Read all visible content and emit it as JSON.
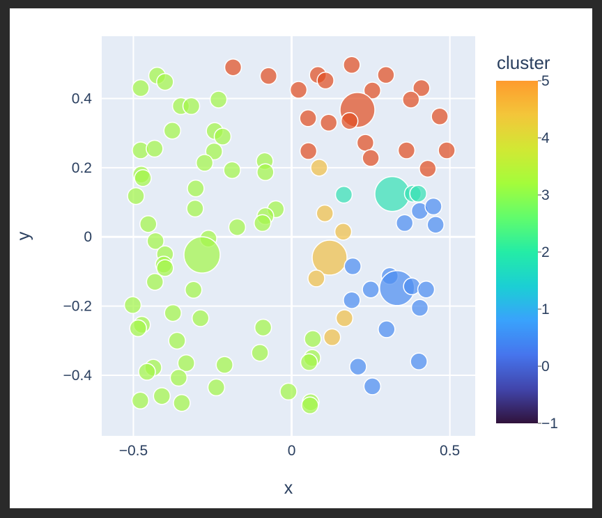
{
  "chart_data": {
    "type": "scatter",
    "title": "",
    "xlabel": "x",
    "ylabel": "y",
    "xlim": [
      -0.6,
      0.58
    ],
    "ylim": [
      -0.575,
      0.58
    ],
    "x_ticks": [
      -0.5,
      0,
      0.5
    ],
    "x_tick_labels": [
      "−0.5",
      "0",
      "0.5"
    ],
    "y_ticks": [
      -0.4,
      -0.2,
      0,
      0.2,
      0.4
    ],
    "y_tick_labels": [
      "−0.4",
      "−0.2",
      "0",
      "0.2",
      "0.4"
    ],
    "grid": true,
    "plot_background": "#e5ecf6",
    "colorbar": {
      "title": "cluster",
      "min": -1,
      "max": 5,
      "ticks": [
        -1,
        0,
        1,
        2,
        3,
        4,
        5
      ],
      "tick_labels": [
        "−1",
        "0",
        "1",
        "2",
        "3",
        "4",
        "5"
      ],
      "colorscale": "turbo"
    },
    "points": [
      {
        "x": -0.477,
        "y": 0.43,
        "cluster": 2,
        "size": 12
      },
      {
        "x": -0.425,
        "y": 0.466,
        "cluster": 2,
        "size": 12
      },
      {
        "x": -0.4,
        "y": 0.448,
        "cluster": 2,
        "size": 12
      },
      {
        "x": -0.35,
        "y": 0.378,
        "cluster": 2,
        "size": 12
      },
      {
        "x": -0.317,
        "y": 0.378,
        "cluster": 2,
        "size": 12
      },
      {
        "x": -0.231,
        "y": 0.397,
        "cluster": 2,
        "size": 12
      },
      {
        "x": -0.377,
        "y": 0.307,
        "cluster": 2,
        "size": 12
      },
      {
        "x": -0.243,
        "y": 0.306,
        "cluster": 2,
        "size": 12
      },
      {
        "x": -0.218,
        "y": 0.29,
        "cluster": 2,
        "size": 12
      },
      {
        "x": -0.477,
        "y": 0.25,
        "cluster": 2,
        "size": 12
      },
      {
        "x": -0.433,
        "y": 0.255,
        "cluster": 2,
        "size": 12
      },
      {
        "x": -0.245,
        "y": 0.247,
        "cluster": 2,
        "size": 12
      },
      {
        "x": -0.275,
        "y": 0.214,
        "cluster": 2,
        "size": 12
      },
      {
        "x": -0.188,
        "y": 0.193,
        "cluster": 2,
        "size": 12
      },
      {
        "x": -0.085,
        "y": 0.219,
        "cluster": 2,
        "size": 12
      },
      {
        "x": -0.083,
        "y": 0.187,
        "cluster": 2,
        "size": 12
      },
      {
        "x": -0.475,
        "y": 0.18,
        "cluster": 2,
        "size": 12
      },
      {
        "x": -0.47,
        "y": 0.17,
        "cluster": 2,
        "size": 12
      },
      {
        "x": -0.492,
        "y": 0.118,
        "cluster": 2,
        "size": 12
      },
      {
        "x": -0.303,
        "y": 0.14,
        "cluster": 2,
        "size": 12
      },
      {
        "x": -0.305,
        "y": 0.082,
        "cluster": 2,
        "size": 12
      },
      {
        "x": -0.05,
        "y": 0.08,
        "cluster": 2,
        "size": 12
      },
      {
        "x": -0.083,
        "y": 0.06,
        "cluster": 2,
        "size": 12
      },
      {
        "x": -0.092,
        "y": 0.04,
        "cluster": 2,
        "size": 12
      },
      {
        "x": -0.172,
        "y": 0.028,
        "cluster": 2,
        "size": 12
      },
      {
        "x": -0.453,
        "y": 0.037,
        "cluster": 2,
        "size": 12
      },
      {
        "x": -0.43,
        "y": -0.012,
        "cluster": 2,
        "size": 12
      },
      {
        "x": -0.263,
        "y": -0.005,
        "cluster": 2,
        "size": 12
      },
      {
        "x": -0.283,
        "y": -0.052,
        "cluster": 2,
        "size": 26
      },
      {
        "x": -0.4,
        "y": -0.05,
        "cluster": 2,
        "size": 12
      },
      {
        "x": -0.404,
        "y": -0.08,
        "cluster": 2,
        "size": 12
      },
      {
        "x": -0.4,
        "y": -0.09,
        "cluster": 2,
        "size": 12
      },
      {
        "x": -0.432,
        "y": -0.13,
        "cluster": 2,
        "size": 12
      },
      {
        "x": -0.31,
        "y": -0.153,
        "cluster": 2,
        "size": 12
      },
      {
        "x": -0.502,
        "y": -0.197,
        "cluster": 2,
        "size": 12
      },
      {
        "x": -0.375,
        "y": -0.22,
        "cluster": 2,
        "size": 12
      },
      {
        "x": -0.288,
        "y": -0.235,
        "cluster": 2,
        "size": 12
      },
      {
        "x": -0.473,
        "y": -0.254,
        "cluster": 2,
        "size": 12
      },
      {
        "x": -0.485,
        "y": -0.264,
        "cluster": 2,
        "size": 12
      },
      {
        "x": -0.09,
        "y": -0.262,
        "cluster": 2,
        "size": 12
      },
      {
        "x": -0.362,
        "y": -0.3,
        "cluster": 2,
        "size": 12
      },
      {
        "x": -0.1,
        "y": -0.335,
        "cluster": 2,
        "size": 12
      },
      {
        "x": -0.333,
        "y": -0.365,
        "cluster": 2,
        "size": 12
      },
      {
        "x": -0.212,
        "y": -0.37,
        "cluster": 2,
        "size": 12
      },
      {
        "x": -0.437,
        "y": -0.378,
        "cluster": 2,
        "size": 12
      },
      {
        "x": -0.457,
        "y": -0.39,
        "cluster": 2,
        "size": 12
      },
      {
        "x": -0.357,
        "y": -0.407,
        "cluster": 2,
        "size": 12
      },
      {
        "x": -0.238,
        "y": -0.435,
        "cluster": 2,
        "size": 12
      },
      {
        "x": -0.41,
        "y": -0.46,
        "cluster": 2,
        "size": 12
      },
      {
        "x": -0.478,
        "y": -0.473,
        "cluster": 2,
        "size": 12
      },
      {
        "x": -0.347,
        "y": -0.48,
        "cluster": 2,
        "size": 12
      },
      {
        "x": -0.01,
        "y": -0.447,
        "cluster": 2,
        "size": 12
      },
      {
        "x": 0.067,
        "y": -0.295,
        "cluster": 2,
        "size": 12
      },
      {
        "x": 0.065,
        "y": -0.35,
        "cluster": 2,
        "size": 12
      },
      {
        "x": 0.055,
        "y": -0.362,
        "cluster": 2,
        "size": 12
      },
      {
        "x": 0.06,
        "y": -0.478,
        "cluster": 2,
        "size": 12
      },
      {
        "x": 0.058,
        "y": -0.487,
        "cluster": 2,
        "size": 12
      },
      {
        "x": -0.185,
        "y": 0.49,
        "cluster": 4,
        "size": 12
      },
      {
        "x": -0.073,
        "y": 0.465,
        "cluster": 4,
        "size": 12
      },
      {
        "x": 0.083,
        "y": 0.468,
        "cluster": 4,
        "size": 12
      },
      {
        "x": 0.107,
        "y": 0.452,
        "cluster": 4,
        "size": 12
      },
      {
        "x": 0.19,
        "y": 0.497,
        "cluster": 4,
        "size": 12
      },
      {
        "x": 0.298,
        "y": 0.468,
        "cluster": 4,
        "size": 12
      },
      {
        "x": 0.022,
        "y": 0.425,
        "cluster": 4,
        "size": 12
      },
      {
        "x": 0.255,
        "y": 0.423,
        "cluster": 4,
        "size": 12
      },
      {
        "x": 0.41,
        "y": 0.43,
        "cluster": 4,
        "size": 12
      },
      {
        "x": 0.377,
        "y": 0.397,
        "cluster": 4,
        "size": 12
      },
      {
        "x": 0.208,
        "y": 0.367,
        "cluster": 4,
        "size": 25
      },
      {
        "x": 0.052,
        "y": 0.343,
        "cluster": 4,
        "size": 12
      },
      {
        "x": 0.117,
        "y": 0.33,
        "cluster": 4,
        "size": 12
      },
      {
        "x": 0.183,
        "y": 0.335,
        "cluster": 4,
        "size": 12
      },
      {
        "x": 0.468,
        "y": 0.348,
        "cluster": 4,
        "size": 12
      },
      {
        "x": 0.233,
        "y": 0.272,
        "cluster": 4,
        "size": 12
      },
      {
        "x": 0.053,
        "y": 0.248,
        "cluster": 4,
        "size": 12
      },
      {
        "x": 0.363,
        "y": 0.25,
        "cluster": 4,
        "size": 12
      },
      {
        "x": 0.49,
        "y": 0.25,
        "cluster": 4,
        "size": 12
      },
      {
        "x": 0.25,
        "y": 0.228,
        "cluster": 4,
        "size": 12
      },
      {
        "x": 0.43,
        "y": 0.197,
        "cluster": 4,
        "size": 12
      },
      {
        "x": 0.087,
        "y": 0.2,
        "cluster": 3,
        "size": 12
      },
      {
        "x": 0.105,
        "y": 0.068,
        "cluster": 3,
        "size": 12
      },
      {
        "x": 0.163,
        "y": 0.015,
        "cluster": 3,
        "size": 12
      },
      {
        "x": 0.12,
        "y": -0.06,
        "cluster": 3,
        "size": 25
      },
      {
        "x": 0.078,
        "y": -0.12,
        "cluster": 3,
        "size": 12
      },
      {
        "x": 0.167,
        "y": -0.235,
        "cluster": 3,
        "size": 12
      },
      {
        "x": 0.128,
        "y": -0.29,
        "cluster": 3,
        "size": 12
      },
      {
        "x": 0.165,
        "y": 0.122,
        "cluster": 1,
        "size": 12
      },
      {
        "x": 0.318,
        "y": 0.124,
        "cluster": 1,
        "size": 25
      },
      {
        "x": 0.383,
        "y": 0.125,
        "cluster": 1,
        "size": 12
      },
      {
        "x": 0.4,
        "y": 0.125,
        "cluster": 1,
        "size": 12
      },
      {
        "x": 0.405,
        "y": 0.075,
        "cluster": 0,
        "size": 12
      },
      {
        "x": 0.448,
        "y": 0.088,
        "cluster": 0,
        "size": 12
      },
      {
        "x": 0.357,
        "y": 0.04,
        "cluster": 0,
        "size": 12
      },
      {
        "x": 0.455,
        "y": 0.035,
        "cluster": 0,
        "size": 12
      },
      {
        "x": 0.193,
        "y": -0.085,
        "cluster": 0,
        "size": 12
      },
      {
        "x": 0.31,
        "y": -0.113,
        "cluster": 0,
        "size": 12
      },
      {
        "x": 0.333,
        "y": -0.148,
        "cluster": 0,
        "size": 25
      },
      {
        "x": 0.25,
        "y": -0.152,
        "cluster": 0,
        "size": 12
      },
      {
        "x": 0.38,
        "y": -0.143,
        "cluster": 0,
        "size": 12
      },
      {
        "x": 0.425,
        "y": -0.152,
        "cluster": 0,
        "size": 12
      },
      {
        "x": 0.19,
        "y": -0.183,
        "cluster": 0,
        "size": 12
      },
      {
        "x": 0.405,
        "y": -0.205,
        "cluster": 0,
        "size": 12
      },
      {
        "x": 0.3,
        "y": -0.267,
        "cluster": 0,
        "size": 12
      },
      {
        "x": 0.21,
        "y": -0.375,
        "cluster": 0,
        "size": 12
      },
      {
        "x": 0.402,
        "y": -0.36,
        "cluster": 0,
        "size": 12
      },
      {
        "x": 0.255,
        "y": -0.432,
        "cluster": 0,
        "size": 12
      }
    ]
  }
}
